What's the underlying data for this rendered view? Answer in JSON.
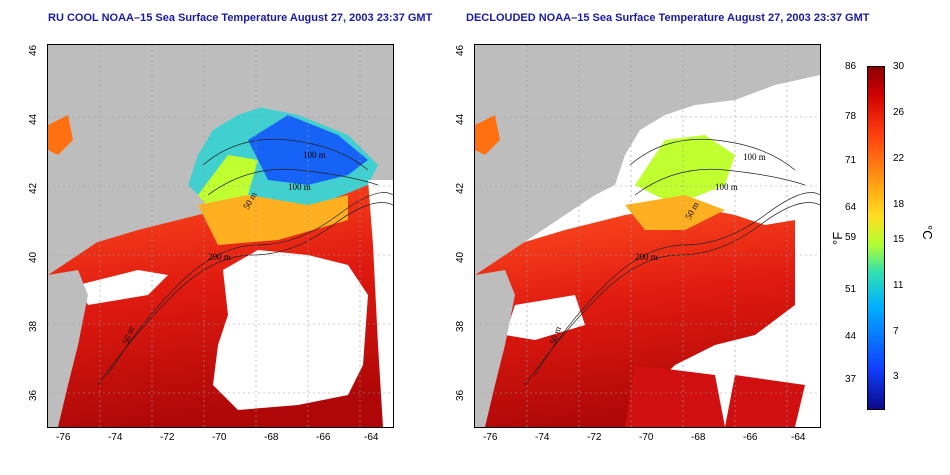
{
  "titles": {
    "left": "RU COOL NOAA–15 Sea Surface Temperature August 27, 2003 23:37 GMT",
    "right": "DECLOUDED NOAA–15 Sea Surface Temperature August 27, 2003 23:37 GMT"
  },
  "axes": {
    "lon_ticks": [
      "-76",
      "-74",
      "-72",
      "-70",
      "-68",
      "-66",
      "-64"
    ],
    "lat_ticks": [
      "46",
      "44",
      "42",
      "40",
      "38",
      "36"
    ]
  },
  "contour_labels": {
    "left": [
      "100 m",
      "100 m",
      "50 m",
      "200 m",
      "50 m"
    ],
    "right": [
      "100 m",
      "100 m",
      "50 m",
      "200 m",
      "50 m"
    ]
  },
  "colorbar": {
    "fahrenheit": [
      "86",
      "78",
      "71",
      "64",
      "59",
      "51",
      "44",
      "37"
    ],
    "celsius": [
      "30",
      "26",
      "22",
      "18",
      "15",
      "11",
      "7",
      "3"
    ],
    "unit_f": "°F",
    "unit_c": "°C"
  },
  "colors": {
    "land": "#bdbdbd",
    "title": "#1a1aa6",
    "cloud": "#ffffff",
    "warm": "#d01010",
    "cold": "#1040ff"
  }
}
